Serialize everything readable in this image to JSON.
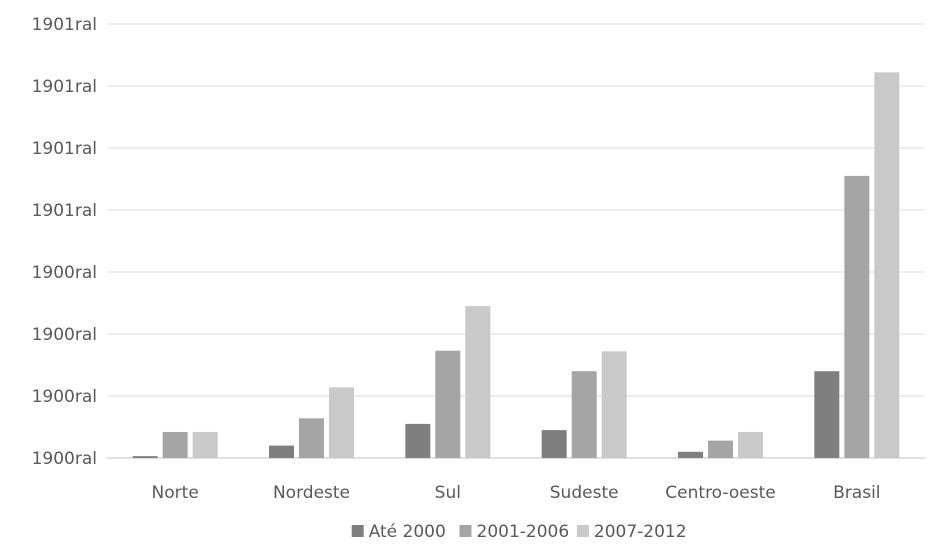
{
  "chart_data": {
    "type": "bar",
    "title": "",
    "xlabel": "",
    "ylabel": "",
    "categories": [
      "Norte",
      "Nordeste",
      "Sul",
      "Sudeste",
      "Centro-oeste",
      "Brasil"
    ],
    "y_tick_labels": [
      "1900ral",
      "1900ral",
      "1900ral",
      "1900ral",
      "1901ral",
      "1901ral",
      "1901ral",
      "1901ral"
    ],
    "ylim": [
      0,
      7
    ],
    "grid": true,
    "legend_position": "bottom",
    "series": [
      {
        "name": "Até 2000",
        "color": "#7f7f7f",
        "values": [
          0.03,
          0.2,
          0.55,
          0.45,
          0.1,
          1.4
        ]
      },
      {
        "name": "2001-2006",
        "color": "#a5a5a5",
        "values": [
          0.42,
          0.64,
          1.73,
          1.4,
          0.28,
          4.55
        ]
      },
      {
        "name": "2007-2012",
        "color": "#c9c9c9",
        "values": [
          0.42,
          1.14,
          2.45,
          1.72,
          0.42,
          6.22
        ]
      }
    ]
  }
}
